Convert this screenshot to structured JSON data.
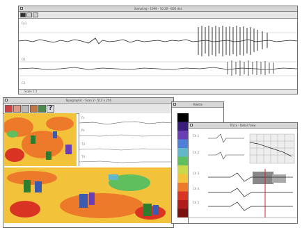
{
  "main_window": {
    "title": "Sampling - 1999 - 10:30 - EEG.dat",
    "channel_labels": [
      "Fp1",
      "O1",
      "C3"
    ],
    "bottom_label": "Scale 1:1",
    "toolbar_icons": [
      "select-tool-icon",
      "zoom-tool-icon",
      "measure-tool-icon"
    ]
  },
  "map_window": {
    "title": "Topographic - Scan 2 - 512 x 256",
    "toolbar_icons": [
      "open-icon",
      "save-icon",
      "pen-icon",
      "palette-icon",
      "layer-icon",
      "help-icon"
    ],
    "help_glyph": "?",
    "trace_labels": [
      "Fz",
      "Pz",
      "T3",
      "T4"
    ]
  },
  "palette_window": {
    "title": "Palette",
    "colors": [
      "#000000",
      "#3a1f7a",
      "#6a3fb5",
      "#4f7fd6",
      "#62b7c8",
      "#5fbf5f",
      "#c8d84a",
      "#f2c23a",
      "#ec7a2a",
      "#d93324",
      "#b01c1c",
      "#7a0f10"
    ]
  },
  "detail_window": {
    "title": "Trace - Detail View",
    "trace_labels": [
      "Ch 1",
      "Ch 2",
      "Ch 3",
      "Ch 4",
      "Ch 5"
    ]
  },
  "colors": {
    "window_border": "#6e6e6e",
    "titlebar": "#d6d6d6",
    "heatmap_base": "#f2c23a",
    "marker": "#c62828"
  }
}
